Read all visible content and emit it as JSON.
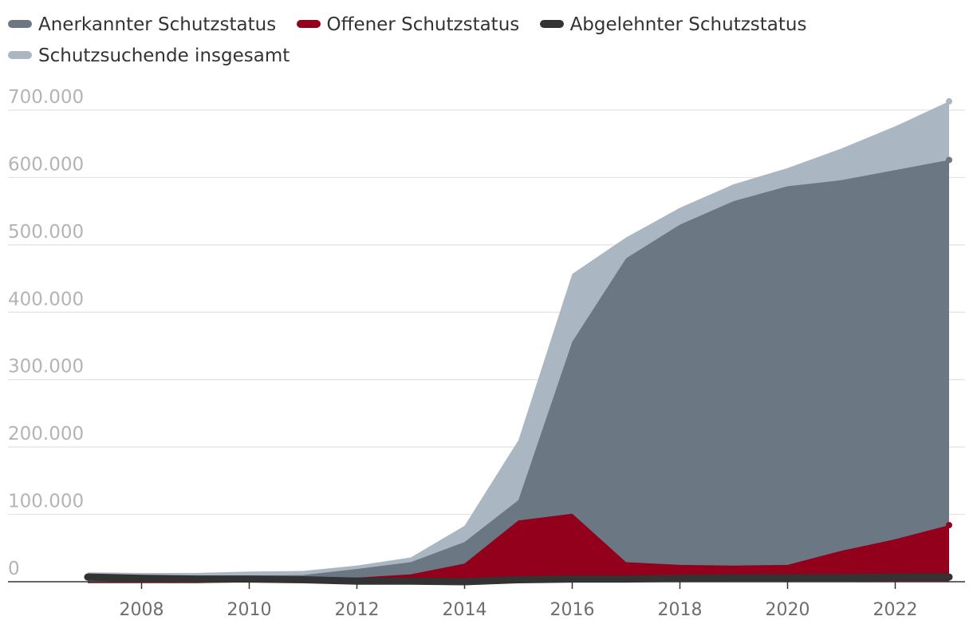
{
  "chart_data": {
    "type": "area",
    "x": [
      2007,
      2008,
      2009,
      2010,
      2011,
      2012,
      2013,
      2014,
      2015,
      2016,
      2017,
      2018,
      2019,
      2020,
      2021,
      2022,
      2023
    ],
    "series": [
      {
        "name": "Anerkannter Schutzstatus",
        "color": "#6b7884",
        "values": [
          10000,
          8000,
          8000,
          9000,
          10000,
          19000,
          29000,
          59000,
          121000,
          356000,
          480000,
          530000,
          565000,
          587000,
          596000,
          611000,
          626000
        ]
      },
      {
        "name": "Offener Schutzstatus",
        "color": "#92001c",
        "values": [
          -2000,
          -2000,
          -2000,
          -1000,
          1000,
          6000,
          11000,
          27000,
          91000,
          101000,
          29000,
          25000,
          24000,
          25000,
          46000,
          63000,
          84000
        ]
      },
      {
        "name": "Abgelehnter Schutzstatus",
        "color": "#333333",
        "values": [
          7000,
          5000,
          4000,
          4000,
          3000,
          1000,
          1000,
          0,
          3000,
          4000,
          4000,
          5000,
          6000,
          6000,
          6000,
          7000,
          7000
        ]
      },
      {
        "name": "Schutzsuchende insgesamt",
        "color": "#aab7c2",
        "values": [
          14000,
          13000,
          13000,
          15000,
          16000,
          24000,
          36000,
          83000,
          210000,
          457000,
          511000,
          555000,
          590000,
          614000,
          643000,
          676000,
          713000
        ]
      }
    ],
    "yticks": [
      0,
      100000,
      200000,
      300000,
      400000,
      500000,
      600000,
      700000
    ],
    "ytick_labels": [
      "0",
      "100.000",
      "200.000",
      "300.000",
      "400.000",
      "500.000",
      "600.000",
      "700.000"
    ],
    "xticks": [
      2008,
      2010,
      2012,
      2014,
      2016,
      2018,
      2020,
      2022
    ],
    "xtick_labels": [
      "2008",
      "2010",
      "2012",
      "2014",
      "2016",
      "2018",
      "2020",
      "2022"
    ],
    "ylim": [
      0,
      700000
    ],
    "xlim": [
      2007,
      2023
    ],
    "grid": true,
    "legend_position": "top-left"
  }
}
